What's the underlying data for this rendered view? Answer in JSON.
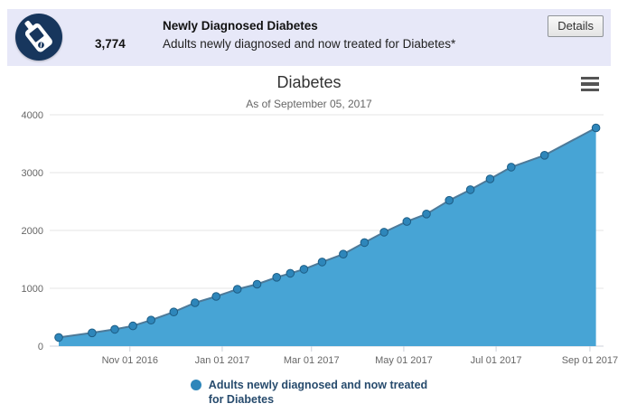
{
  "header": {
    "background": "#e7e8f8",
    "icon_color": "#17365d",
    "value": "3,774",
    "title": "Newly Diagnosed Diabetes",
    "subtitle": "Adults newly diagnosed and now treated for Diabetes*",
    "details_label": "Details"
  },
  "chart_data": {
    "type": "area",
    "title": "Diabetes",
    "subtitle": "As of September 05, 2017",
    "legend_position": "bottom-center",
    "grid": "horizontal",
    "colors": {
      "area_fill": "#47a4d5",
      "line": "#4d7a99",
      "marker_fill": "#2e86ba",
      "marker_stroke": "#1d5d85",
      "gridline": "#e6e6e6",
      "axis_line": "#ccd1da",
      "axis_label": "#666666"
    },
    "xaxis": {
      "type": "datetime",
      "start": "2016-09-09",
      "end": "2017-09-10",
      "ticks": [
        {
          "date": "2016-11-01",
          "label": "Nov 01 2016"
        },
        {
          "date": "2017-01-01",
          "label": "Jan 01 2017"
        },
        {
          "date": "2017-03-01",
          "label": "Mar 01 2017"
        },
        {
          "date": "2017-05-01",
          "label": "May 01 2017"
        },
        {
          "date": "2017-07-01",
          "label": "Jul 01 2017"
        },
        {
          "date": "2017-09-01",
          "label": "Sep 01 2017"
        }
      ]
    },
    "yaxis": {
      "min": 0,
      "max": 4000,
      "tick_interval": 1000,
      "labels": [
        "0",
        "1000",
        "2000",
        "3000",
        "4000"
      ]
    },
    "series": [
      {
        "name": "Adults newly diagnosed and now treated for Diabetes",
        "points": [
          [
            "2016-09-15",
            150
          ],
          [
            "2016-10-07",
            230
          ],
          [
            "2016-10-22",
            290
          ],
          [
            "2016-11-03",
            350
          ],
          [
            "2016-11-15",
            450
          ],
          [
            "2016-11-30",
            590
          ],
          [
            "2016-12-14",
            750
          ],
          [
            "2016-12-28",
            860
          ],
          [
            "2017-01-11",
            985
          ],
          [
            "2017-01-24",
            1070
          ],
          [
            "2017-02-06",
            1190
          ],
          [
            "2017-02-15",
            1260
          ],
          [
            "2017-02-24",
            1330
          ],
          [
            "2017-03-08",
            1455
          ],
          [
            "2017-03-22",
            1590
          ],
          [
            "2017-04-05",
            1790
          ],
          [
            "2017-04-18",
            1970
          ],
          [
            "2017-05-03",
            2155
          ],
          [
            "2017-05-16",
            2285
          ],
          [
            "2017-05-31",
            2520
          ],
          [
            "2017-06-14",
            2705
          ],
          [
            "2017-06-27",
            2890
          ],
          [
            "2017-07-11",
            3095
          ],
          [
            "2017-08-02",
            3300
          ],
          [
            "2017-09-05",
            3774
          ]
        ]
      }
    ],
    "legend": {
      "line1": "Adults newly diagnosed and now treated",
      "line2": "for Diabetes"
    }
  }
}
